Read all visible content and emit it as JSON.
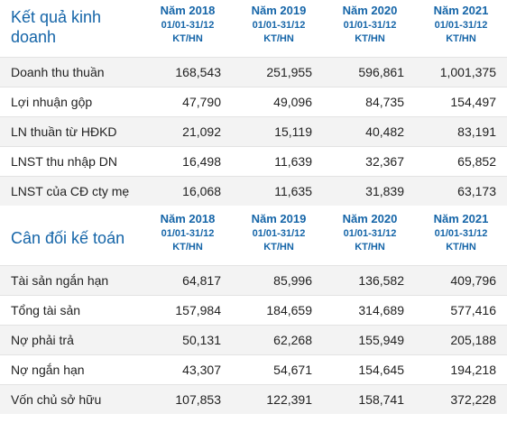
{
  "income": {
    "title": "Kết quả kinh doanh",
    "columns": [
      {
        "year": "Năm 2018",
        "period": "01/01-31/12",
        "type": "KT/HN"
      },
      {
        "year": "Năm 2019",
        "period": "01/01-31/12",
        "type": "KT/HN"
      },
      {
        "year": "Năm 2020",
        "period": "01/01-31/12",
        "type": "KT/HN"
      },
      {
        "year": "Năm 2021",
        "period": "01/01-31/12",
        "type": "KT/HN"
      }
    ],
    "rows": [
      {
        "label": "Doanh thu thuần",
        "values": [
          "168,543",
          "251,955",
          "596,861",
          "1,001,375"
        ]
      },
      {
        "label": "Lợi nhuận gộp",
        "values": [
          "47,790",
          "49,096",
          "84,735",
          "154,497"
        ]
      },
      {
        "label": "LN thuần từ HĐKD",
        "values": [
          "21,092",
          "15,119",
          "40,482",
          "83,191"
        ]
      },
      {
        "label": "LNST thu nhập DN",
        "values": [
          "16,498",
          "11,639",
          "32,367",
          "65,852"
        ]
      },
      {
        "label": "LNST của CĐ cty mẹ",
        "values": [
          "16,068",
          "11,635",
          "31,839",
          "63,173"
        ]
      }
    ]
  },
  "balance": {
    "title": "Cân đối kế toán",
    "columns": [
      {
        "year": "Năm 2018",
        "period": "01/01-31/12",
        "type": "KT/HN"
      },
      {
        "year": "Năm 2019",
        "period": "01/01-31/12",
        "type": "KT/HN"
      },
      {
        "year": "Năm 2020",
        "period": "01/01-31/12",
        "type": "KT/HN"
      },
      {
        "year": "Năm 2021",
        "period": "01/01-31/12",
        "type": "KT/HN"
      }
    ],
    "rows": [
      {
        "label": "Tài sản ngắn hạn",
        "values": [
          "64,817",
          "85,996",
          "136,582",
          "409,796"
        ]
      },
      {
        "label": "Tổng tài sản",
        "values": [
          "157,984",
          "184,659",
          "314,689",
          "577,416"
        ]
      },
      {
        "label": "Nợ phải trả",
        "values": [
          "50,131",
          "62,268",
          "155,949",
          "205,188"
        ]
      },
      {
        "label": "Nợ ngắn hạn",
        "values": [
          "43,307",
          "54,671",
          "154,645",
          "194,218"
        ]
      },
      {
        "label": "Vốn chủ sở hữu",
        "values": [
          "107,853",
          "122,391",
          "158,741",
          "372,228"
        ]
      }
    ]
  }
}
